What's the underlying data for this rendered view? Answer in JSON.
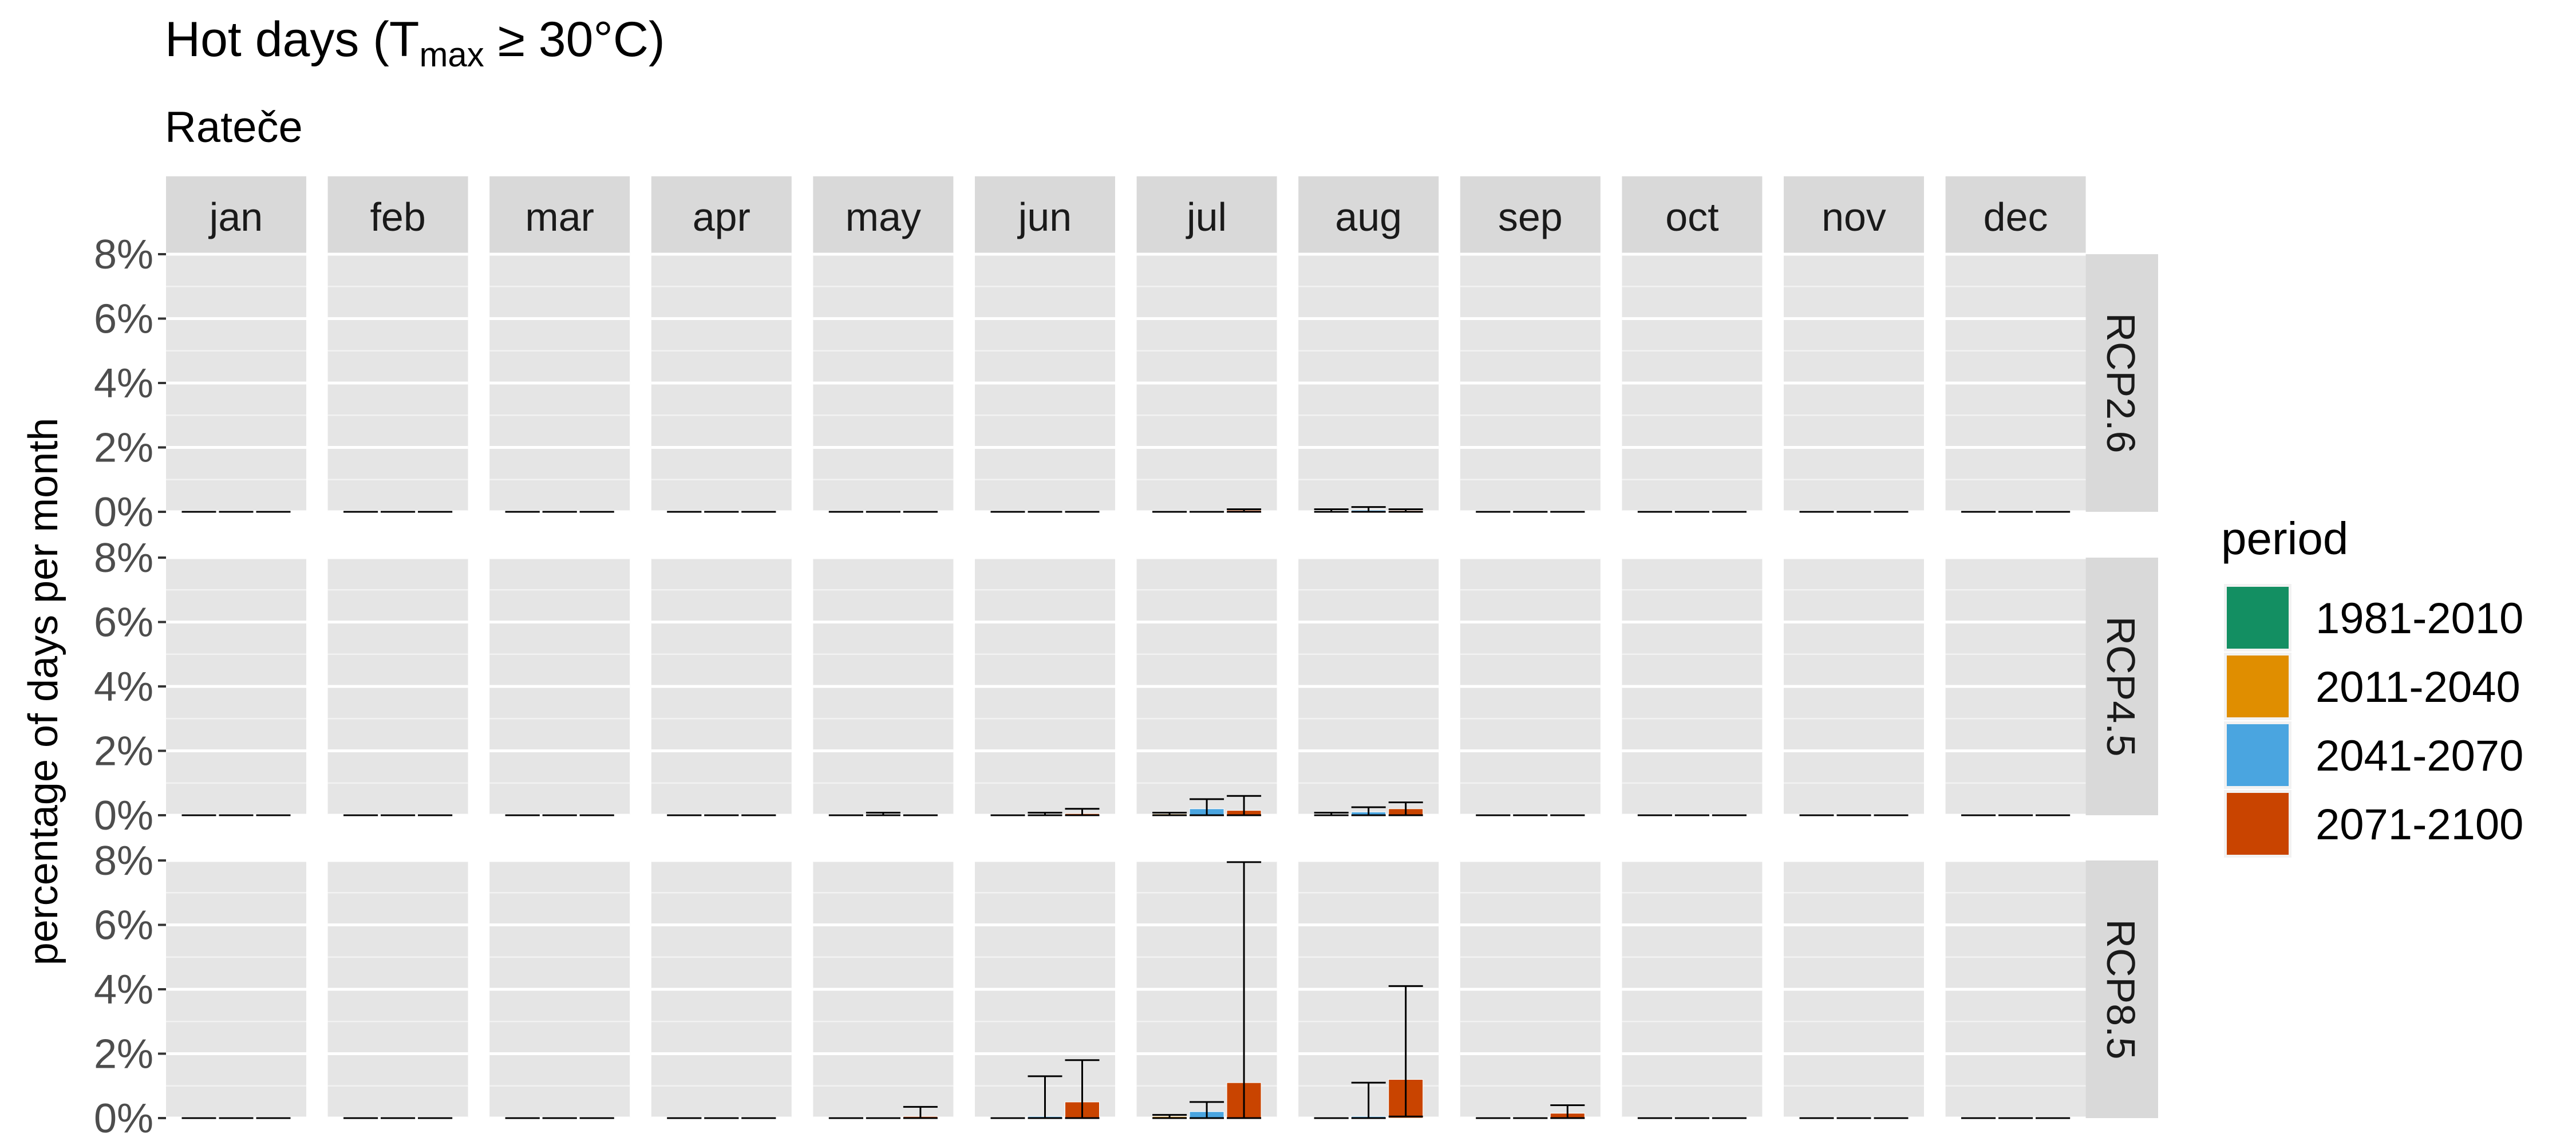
{
  "chart_data": {
    "type": "bar",
    "title_main": "Hot days (T",
    "title_sub": "max",
    "title_rest": " ≥ 30°C)",
    "subtitle": "Rateče",
    "ylabel": "percentage of days per month",
    "xlabel": "",
    "ylim": [
      0,
      8
    ],
    "yticks": [
      "0%",
      "2%",
      "4%",
      "6%",
      "8%"
    ],
    "ytick_values": [
      0,
      2,
      4,
      6,
      8
    ],
    "months": [
      "jan",
      "feb",
      "mar",
      "apr",
      "may",
      "jun",
      "jul",
      "aug",
      "sep",
      "oct",
      "nov",
      "dec"
    ],
    "scenarios": [
      "RCP2.6",
      "RCP4.5",
      "RCP8.5"
    ],
    "legend_title": "period",
    "legend_position": "right",
    "grid": true,
    "series": [
      {
        "name": "1981-2010",
        "color": "#138f62"
      },
      {
        "name": "2011-2040",
        "color": "#e08e00"
      },
      {
        "name": "2041-2070",
        "color": "#4aa5e0"
      },
      {
        "name": "2071-2100",
        "color": "#c94400"
      }
    ],
    "bar_series_order": [
      "2011-2040",
      "2041-2070",
      "2071-2100"
    ],
    "panels": {
      "RCP2.6": {
        "jan": [
          [
            0,
            0,
            0
          ],
          [
            0,
            0,
            0
          ],
          [
            0,
            0,
            0
          ]
        ],
        "feb": [
          [
            0,
            0,
            0
          ],
          [
            0,
            0,
            0
          ],
          [
            0,
            0,
            0
          ]
        ],
        "mar": [
          [
            0,
            0,
            0
          ],
          [
            0,
            0,
            0
          ],
          [
            0,
            0,
            0
          ]
        ],
        "apr": [
          [
            0,
            0,
            0
          ],
          [
            0,
            0,
            0
          ],
          [
            0,
            0,
            0
          ]
        ],
        "may": [
          [
            0,
            0,
            0
          ],
          [
            0,
            0,
            0
          ],
          [
            0,
            0,
            0
          ]
        ],
        "jun": [
          [
            0,
            0,
            0
          ],
          [
            0,
            0,
            0
          ],
          [
            0,
            0,
            0
          ]
        ],
        "jul": [
          [
            0,
            0,
            0
          ],
          [
            0,
            0,
            0
          ],
          [
            0.05,
            0,
            0.08
          ]
        ],
        "aug": [
          [
            0.03,
            0,
            0.08
          ],
          [
            0.05,
            0,
            0.15
          ],
          [
            0.04,
            0,
            0.08
          ]
        ],
        "sep": [
          [
            0,
            0,
            0
          ],
          [
            0,
            0,
            0
          ],
          [
            0,
            0,
            0
          ]
        ],
        "oct": [
          [
            0,
            0,
            0
          ],
          [
            0,
            0,
            0
          ],
          [
            0,
            0,
            0
          ]
        ],
        "nov": [
          [
            0,
            0,
            0
          ],
          [
            0,
            0,
            0
          ],
          [
            0,
            0,
            0
          ]
        ],
        "dec": [
          [
            0,
            0,
            0
          ],
          [
            0,
            0,
            0
          ],
          [
            0,
            0,
            0
          ]
        ]
      },
      "RCP4.5": {
        "jan": [
          [
            0,
            0,
            0
          ],
          [
            0,
            0,
            0
          ],
          [
            0,
            0,
            0
          ]
        ],
        "feb": [
          [
            0,
            0,
            0
          ],
          [
            0,
            0,
            0
          ],
          [
            0,
            0,
            0
          ]
        ],
        "mar": [
          [
            0,
            0,
            0
          ],
          [
            0,
            0,
            0
          ],
          [
            0,
            0,
            0
          ]
        ],
        "apr": [
          [
            0,
            0,
            0
          ],
          [
            0,
            0,
            0
          ],
          [
            0,
            0,
            0
          ]
        ],
        "may": [
          [
            0,
            0,
            0
          ],
          [
            0.02,
            0,
            0.08
          ],
          [
            0,
            0,
            0
          ]
        ],
        "jun": [
          [
            0,
            0,
            0
          ],
          [
            0.03,
            0,
            0.08
          ],
          [
            0.05,
            0,
            0.2
          ]
        ],
        "jul": [
          [
            0.04,
            0,
            0.08
          ],
          [
            0.2,
            0,
            0.5
          ],
          [
            0.15,
            0,
            0.6
          ]
        ],
        "aug": [
          [
            0.03,
            0,
            0.08
          ],
          [
            0.1,
            0,
            0.25
          ],
          [
            0.2,
            0,
            0.4
          ]
        ],
        "sep": [
          [
            0,
            0,
            0
          ],
          [
            0,
            0,
            0
          ],
          [
            0,
            0,
            0
          ]
        ],
        "oct": [
          [
            0,
            0,
            0
          ],
          [
            0,
            0,
            0
          ],
          [
            0,
            0,
            0
          ]
        ],
        "nov": [
          [
            0,
            0,
            0
          ],
          [
            0,
            0,
            0
          ],
          [
            0,
            0,
            0
          ]
        ],
        "dec": [
          [
            0,
            0,
            0
          ],
          [
            0,
            0,
            0
          ],
          [
            0,
            0,
            0
          ]
        ]
      },
      "RCP8.5": {
        "jan": [
          [
            0,
            0,
            0
          ],
          [
            0,
            0,
            0
          ],
          [
            0,
            0,
            0
          ]
        ],
        "feb": [
          [
            0,
            0,
            0
          ],
          [
            0,
            0,
            0
          ],
          [
            0,
            0,
            0
          ]
        ],
        "mar": [
          [
            0,
            0,
            0
          ],
          [
            0,
            0,
            0
          ],
          [
            0,
            0,
            0
          ]
        ],
        "apr": [
          [
            0,
            0,
            0
          ],
          [
            0,
            0,
            0
          ],
          [
            0,
            0,
            0
          ]
        ],
        "may": [
          [
            0,
            0,
            0
          ],
          [
            0,
            0,
            0
          ],
          [
            0.05,
            0,
            0.35
          ]
        ],
        "jun": [
          [
            0,
            0,
            0
          ],
          [
            0.05,
            0,
            1.3
          ],
          [
            0.5,
            0,
            1.8
          ]
        ],
        "jul": [
          [
            0.05,
            0,
            0.1
          ],
          [
            0.2,
            0,
            0.5
          ],
          [
            1.1,
            0,
            7.95
          ]
        ],
        "aug": [
          [
            0,
            0,
            0
          ],
          [
            0.05,
            0,
            1.1
          ],
          [
            1.2,
            0.05,
            4.1
          ]
        ],
        "sep": [
          [
            0,
            0,
            0
          ],
          [
            0,
            0,
            0
          ],
          [
            0.15,
            0,
            0.4
          ]
        ],
        "oct": [
          [
            0,
            0,
            0
          ],
          [
            0,
            0,
            0
          ],
          [
            0,
            0,
            0
          ]
        ],
        "nov": [
          [
            0,
            0,
            0
          ],
          [
            0,
            0,
            0
          ],
          [
            0,
            0,
            0
          ]
        ],
        "dec": [
          [
            0,
            0,
            0
          ],
          [
            0,
            0,
            0
          ],
          [
            0,
            0,
            0
          ]
        ]
      }
    }
  }
}
